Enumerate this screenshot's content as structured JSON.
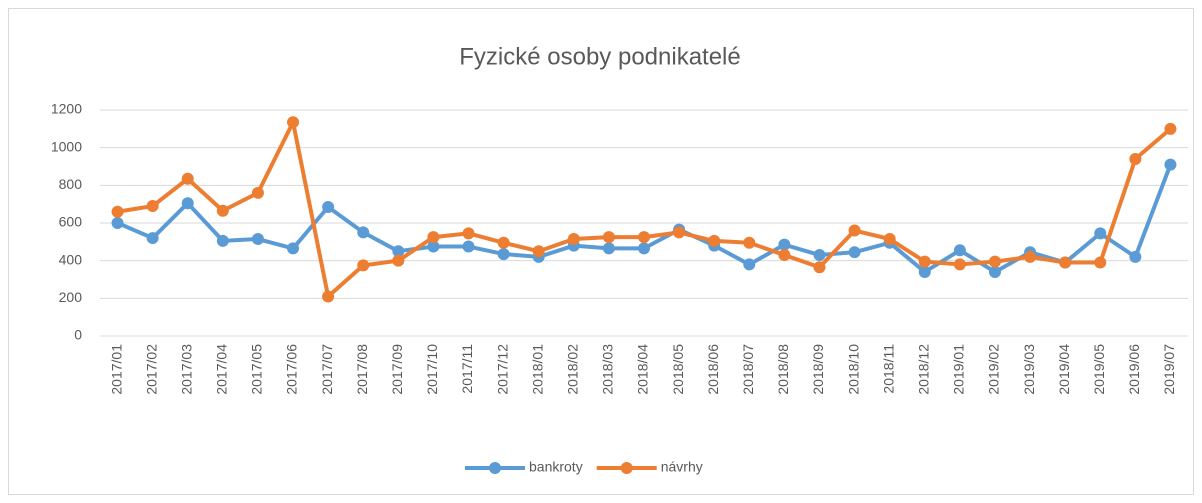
{
  "chart_data": {
    "type": "line",
    "title": "Fyzické osoby podnikatelé",
    "categories": [
      "2017/01",
      "2017/02",
      "2017/03",
      "2017/04",
      "2017/05",
      "2017/06",
      "2017/07",
      "2017/08",
      "2017/09",
      "2017/10",
      "2017/11",
      "2017/12",
      "2018/01",
      "2018/02",
      "2018/03",
      "2018/04",
      "2018/05",
      "2018/06",
      "2018/07",
      "2018/08",
      "2018/09",
      "2018/10",
      "2018/11",
      "2018/12",
      "2019/01",
      "2019/02",
      "2019/03",
      "2019/04",
      "2019/05",
      "2019/06",
      "2019/07"
    ],
    "series": [
      {
        "name": "bankroty",
        "color": "#5b9bd5",
        "values": [
          600,
          520,
          705,
          505,
          515,
          465,
          685,
          550,
          450,
          475,
          475,
          435,
          420,
          480,
          465,
          465,
          565,
          480,
          380,
          485,
          430,
          445,
          495,
          340,
          455,
          340,
          445,
          390,
          545,
          420,
          910
        ]
      },
      {
        "name": "návrhy",
        "color": "#ed7d31",
        "values": [
          660,
          690,
          835,
          665,
          760,
          1135,
          210,
          375,
          400,
          525,
          545,
          495,
          450,
          515,
          525,
          525,
          550,
          505,
          495,
          430,
          365,
          560,
          515,
          395,
          380,
          395,
          420,
          390,
          390,
          940,
          1100
        ]
      }
    ],
    "ylim": [
      0,
      1200
    ],
    "yticks": [
      0,
      200,
      400,
      600,
      800,
      1000,
      1200
    ],
    "grid": true,
    "legend": "bottom"
  }
}
